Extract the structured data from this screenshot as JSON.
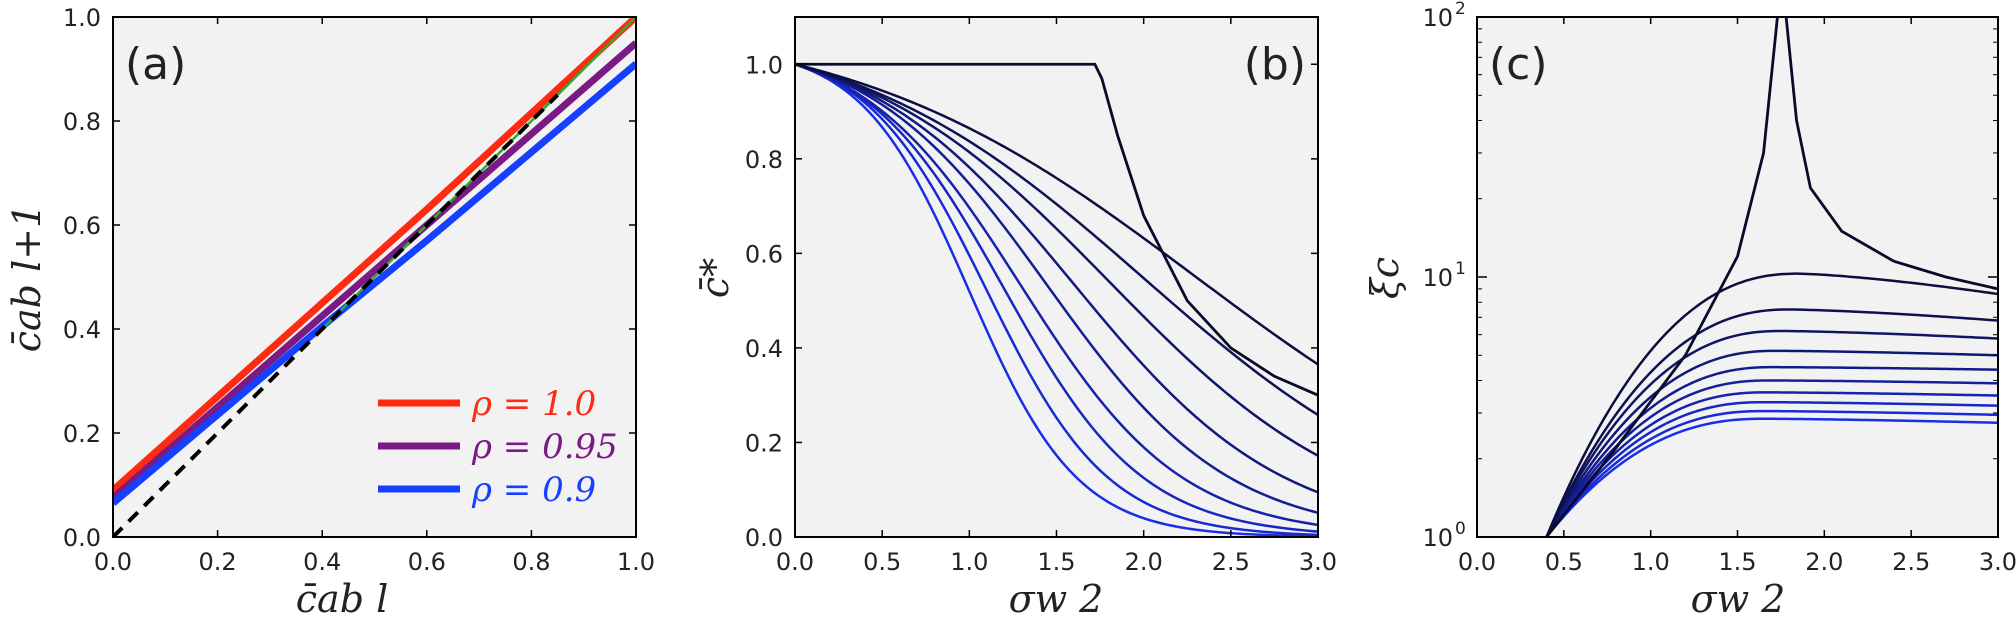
{
  "chart_data": [
    {
      "type": "line",
      "panel_label": "(a)",
      "xlabel": "c̄ab l",
      "ylabel": "c̄ab l+1",
      "xlim": [
        0,
        1
      ],
      "ylim": [
        0,
        1
      ],
      "xticks": [
        0.0,
        0.2,
        0.4,
        0.6,
        0.8,
        1.0
      ],
      "yticks": [
        0.0,
        0.2,
        0.4,
        0.6,
        0.8,
        1.0
      ],
      "xtick_labels": [
        "0.0",
        "0.2",
        "0.4",
        "0.6",
        "0.8",
        "1.0"
      ],
      "ytick_labels": [
        "0.0",
        "0.2",
        "0.4",
        "0.6",
        "0.8",
        "1.0"
      ],
      "legend_position": "bottom-right",
      "series": [
        {
          "name": "ρ = 1.0",
          "color": "#ff2a12",
          "x": [
            0,
            0.2,
            0.4,
            0.6,
            0.8,
            1.0
          ],
          "y": [
            0.09,
            0.27,
            0.45,
            0.63,
            0.815,
            1.0
          ]
        },
        {
          "name": "ρ = 0.95",
          "color": "#7a1a84",
          "x": [
            0,
            0.2,
            0.4,
            0.6,
            0.8,
            1.0
          ],
          "y": [
            0.075,
            0.25,
            0.425,
            0.6,
            0.775,
            0.95
          ]
        },
        {
          "name": "ρ = 0.9",
          "color": "#1640ff",
          "x": [
            0,
            0.2,
            0.4,
            0.6,
            0.8,
            1.0
          ],
          "y": [
            0.065,
            0.235,
            0.405,
            0.57,
            0.74,
            0.91
          ]
        }
      ],
      "reference_lines": [
        {
          "style": "dashed",
          "color": "#000000",
          "x": [
            0,
            0.85
          ],
          "y": [
            0,
            0.85
          ]
        },
        {
          "style": "solid",
          "color": "#2eaa2e",
          "x": [
            0.4,
            1.0
          ],
          "y": [
            0.4,
            1.0
          ]
        }
      ]
    },
    {
      "type": "line",
      "panel_label": "(b)",
      "xlabel": "σw 2",
      "ylabel": "c̄*",
      "xlim": [
        0,
        3
      ],
      "ylim": [
        0,
        1.1
      ],
      "xticks": [
        0.0,
        0.5,
        1.0,
        1.5,
        2.0,
        2.5,
        3.0
      ],
      "yticks": [
        0.0,
        0.2,
        0.4,
        0.6,
        0.8,
        1.0
      ],
      "xtick_labels": [
        "0.0",
        "0.5",
        "1.0",
        "1.5",
        "2.0",
        "2.5",
        "3.0"
      ],
      "ytick_labels": [
        "0.0",
        "0.2",
        "0.4",
        "0.6",
        "0.8",
        "1.0"
      ],
      "color_gradient": [
        "#0a0a2a",
        "#1a2ee8"
      ],
      "curve_params": {
        "transition_width": [
          1.0,
          0.85,
          0.72,
          0.6,
          0.52,
          0.46,
          0.4,
          0.35,
          0.31
        ],
        "transition_center": [
          2.3,
          2.0,
          1.8,
          1.6,
          1.45,
          1.3,
          1.2,
          1.1,
          1.0
        ]
      },
      "critical_curve": {
        "x": [
          0,
          1.72,
          1.76,
          1.85,
          2.0,
          2.25,
          2.5,
          2.75,
          3.0
        ],
        "y": [
          1.0,
          1.0,
          0.97,
          0.85,
          0.68,
          0.5,
          0.4,
          0.34,
          0.3
        ]
      }
    },
    {
      "type": "line",
      "panel_label": "(c)",
      "xlabel": "σw 2",
      "ylabel": "ξc",
      "xlim": [
        0,
        3
      ],
      "ylim": [
        1,
        100
      ],
      "yscale": "log",
      "xticks": [
        0.0,
        0.5,
        1.0,
        1.5,
        2.0,
        2.5,
        3.0
      ],
      "xtick_labels": [
        "0.0",
        "0.5",
        "1.0",
        "1.5",
        "2.0",
        "2.5",
        "3.0"
      ],
      "ytick_labels": [
        "10",
        "10",
        "10"
      ],
      "ytick_exponents": [
        "0",
        "1",
        "2"
      ],
      "ytick_values": [
        1,
        10,
        100
      ],
      "color_gradient": [
        "#0a0a2a",
        "#1a2ee8"
      ],
      "curve_params": {
        "peak_x": [
          1.85,
          1.8,
          1.75,
          1.72,
          1.7,
          1.68,
          1.66,
          1.65,
          1.65,
          1.65
        ],
        "peak_y": [
          10.3,
          7.5,
          6.2,
          5.2,
          4.5,
          4.0,
          3.6,
          3.3,
          3.05,
          2.85
        ],
        "end_y": [
          8.6,
          6.8,
          5.8,
          5.0,
          4.4,
          3.9,
          3.5,
          3.2,
          2.95,
          2.75
        ]
      },
      "critical_curve": {
        "x": [
          0.4,
          0.8,
          1.2,
          1.5,
          1.65,
          1.73,
          1.78,
          1.84,
          1.92,
          2.1,
          2.4,
          2.7,
          3.0
        ],
        "y": [
          1.0,
          2.2,
          5.0,
          12.0,
          30.0,
          100.0,
          100.0,
          40.0,
          22.0,
          15.0,
          11.5,
          10.0,
          9.0
        ]
      }
    }
  ]
}
